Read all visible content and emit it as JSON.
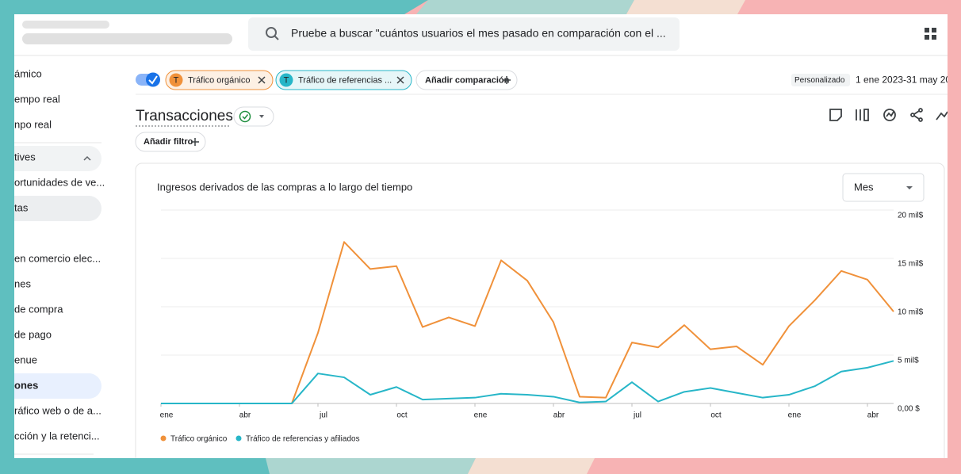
{
  "header": {
    "search_placeholder": "Pruebe a buscar \"cuántos usuarios el mes pasado en comparación con el ..."
  },
  "sidebar": {
    "items": [
      "ámico",
      "empo real",
      "npo real",
      "tives",
      "ortunidades de ve...",
      "tas",
      "en comercio elec...",
      "nes",
      " de compra",
      " de pago",
      "enue",
      "ones",
      "ráfico web o de a...",
      "cción y la retenci..."
    ]
  },
  "comparisons": {
    "chips": [
      {
        "avatar": "T",
        "label": "Tráfico orgánico"
      },
      {
        "avatar": "T",
        "label": "Tráfico de referencias ..."
      }
    ],
    "add": "Añadir comparación",
    "date_mode": "Personalizado",
    "date_range": "1 ene 2023-31 may 20"
  },
  "report": {
    "title": "Transacciones",
    "add_filter": "Añadir filtro",
    "granularity": "Mes"
  },
  "chart_data": {
    "type": "line",
    "title": "Ingresos derivados de las compras a lo largo del tiempo",
    "categories": [
      "ene",
      null,
      null,
      "abr",
      null,
      null,
      "jul",
      null,
      null,
      "oct",
      null,
      null,
      "ene",
      null,
      null,
      "abr",
      null,
      null,
      "jul",
      null,
      null,
      "oct",
      null,
      null,
      "ene",
      null,
      null,
      "abr",
      null
    ],
    "series": [
      {
        "name": "Tráfico orgánico",
        "color": "#f0913a",
        "values": [
          0,
          0,
          0,
          0,
          0,
          0,
          7300,
          16700,
          13900,
          14200,
          7900,
          8900,
          8000,
          14800,
          12700,
          8400,
          700,
          600,
          6300,
          5800,
          8100,
          5600,
          5900,
          4000,
          8000,
          10700,
          13700,
          12800,
          9500
        ]
      },
      {
        "name": "Tráfico de referencias y afiliados",
        "color": "#27b6c8",
        "values": [
          0,
          0,
          0,
          0,
          0,
          0,
          3100,
          2700,
          900,
          1700,
          400,
          500,
          600,
          1000,
          900,
          700,
          100,
          200,
          2200,
          200,
          1200,
          1600,
          1100,
          600,
          900,
          1800,
          3300,
          3700,
          4400
        ]
      }
    ],
    "ylim": [
      0,
      20000
    ],
    "yticks": [
      {
        "value": 0,
        "label": "0,00 $"
      },
      {
        "value": 5000,
        "label": "5 mil$"
      },
      {
        "value": 10000,
        "label": "10 mil$"
      },
      {
        "value": 15000,
        "label": "15 mil$"
      },
      {
        "value": 20000,
        "label": "20 mil$"
      }
    ],
    "grid": true
  }
}
